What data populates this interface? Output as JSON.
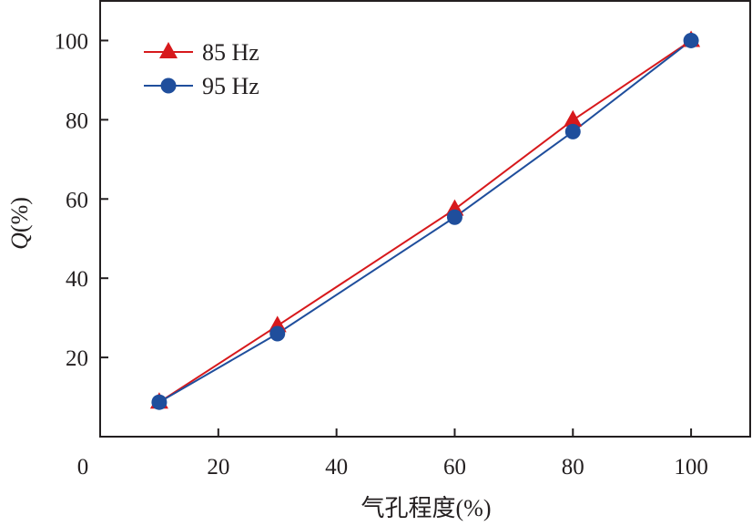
{
  "chart_data": {
    "type": "line",
    "title": "",
    "xlabel": "气孔程度(%)",
    "ylabel_italic": "Q",
    "ylabel_rest": "(%)",
    "xlim": [
      0,
      110
    ],
    "ylim": [
      0,
      110
    ],
    "xticks": [
      0,
      20,
      40,
      60,
      80,
      100
    ],
    "yticks": [
      20,
      40,
      60,
      80,
      100
    ],
    "grid": false,
    "legend_position": "top-left",
    "x": [
      10,
      30,
      60,
      80,
      100
    ],
    "series": [
      {
        "name": "85 Hz",
        "marker": "triangle",
        "color": "#d7191c",
        "values": [
          8.7,
          28,
          57.4,
          79.9,
          100
        ]
      },
      {
        "name": "95 Hz",
        "marker": "circle",
        "color": "#1f4e9c",
        "values": [
          8.7,
          26,
          55.4,
          77,
          100
        ]
      }
    ]
  }
}
